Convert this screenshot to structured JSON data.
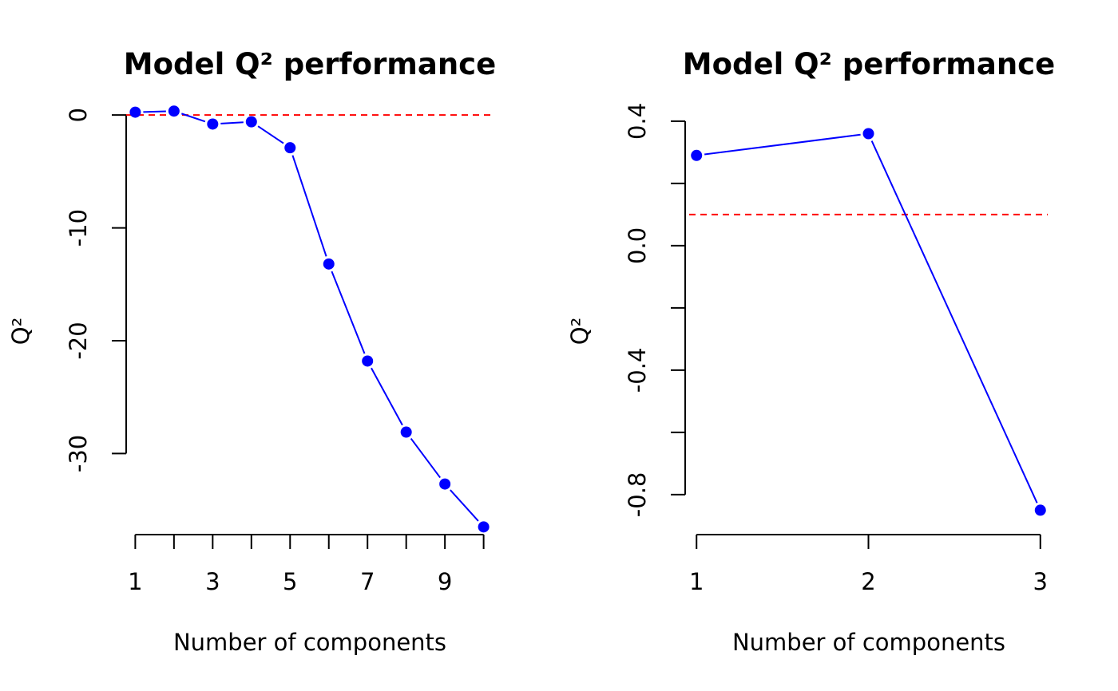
{
  "chart_data": [
    {
      "type": "line",
      "title": "Model Q² performance",
      "xlabel": "Number of components",
      "ylabel": "Q²",
      "x": [
        1,
        2,
        3,
        4,
        5,
        6,
        7,
        8,
        9,
        10
      ],
      "x_ticks": [
        1,
        2,
        3,
        4,
        5,
        6,
        7,
        8,
        9,
        10
      ],
      "x_tick_labels": [
        "1",
        "",
        "3",
        "",
        "5",
        "",
        "7",
        "",
        "9",
        ""
      ],
      "y_ticks": [
        0,
        -10,
        -20,
        -30
      ],
      "y_tick_labels": [
        "0",
        "-10",
        "-20",
        "-30"
      ],
      "xlim": [
        0.6,
        10.4
      ],
      "ylim": [
        -36.9,
        1.0
      ],
      "series": [
        {
          "values": [
            0.25,
            0.35,
            -0.8,
            -0.6,
            -2.9,
            -13.2,
            -21.8,
            -28.1,
            -32.7,
            -36.5
          ],
          "color": "#0000ff",
          "style": "line-with-points"
        }
      ],
      "reference_line": {
        "y": 0.0,
        "color": "#ff0000",
        "style": "dashed"
      },
      "grid": false,
      "legend": "none"
    },
    {
      "type": "line",
      "title": "Model Q² performance",
      "xlabel": "Number of components",
      "ylabel": "Q²",
      "x": [
        1,
        2,
        3
      ],
      "x_ticks": [
        1,
        2,
        3
      ],
      "x_tick_labels": [
        "1",
        "2",
        "3"
      ],
      "y_ticks": [
        0.4,
        0.2,
        0.0,
        -0.2,
        -0.4,
        -0.6,
        -0.8
      ],
      "y_tick_labels": [
        "0.4",
        "",
        "0.0",
        "",
        "-0.4",
        "",
        "-0.8"
      ],
      "xlim": [
        0.92,
        3.08
      ],
      "ylim": [
        -0.89,
        0.41
      ],
      "series": [
        {
          "values": [
            0.29,
            0.36,
            -0.85
          ],
          "color": "#0000ff",
          "style": "line-with-points"
        }
      ],
      "reference_line": {
        "y": 0.1,
        "color": "#ff0000",
        "style": "dashed"
      },
      "grid": false,
      "legend": "none"
    }
  ]
}
